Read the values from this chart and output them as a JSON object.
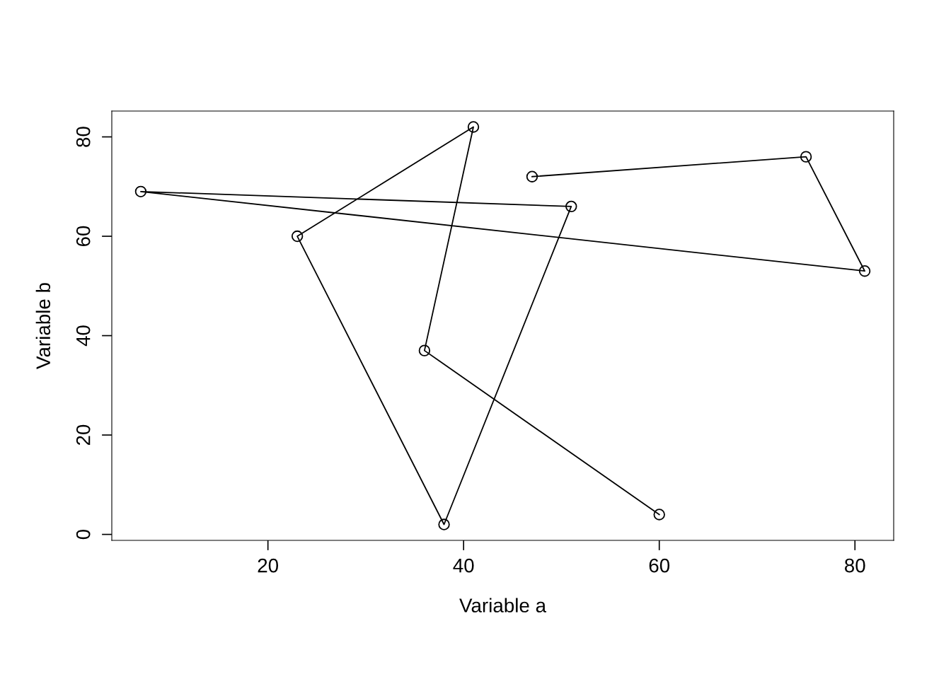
{
  "chart_data": {
    "type": "line",
    "xlabel": "Variable a",
    "ylabel": "Variable b",
    "x": [
      47,
      75,
      81,
      7,
      51,
      38,
      23,
      41,
      36,
      60
    ],
    "series": [
      {
        "color": "#000000",
        "values": [
          72,
          76,
          53,
          69,
          66,
          2,
          60,
          82,
          37,
          4
        ]
      }
    ],
    "xlim": [
      4.04,
      83.96
    ],
    "ylim": [
      -1.2,
      85.2
    ],
    "xticks": [
      20,
      40,
      60,
      80
    ],
    "yticks": [
      0,
      20,
      40,
      60,
      80
    ],
    "marker": "circle",
    "line_style": "solid",
    "grid": false,
    "legend": false
  }
}
